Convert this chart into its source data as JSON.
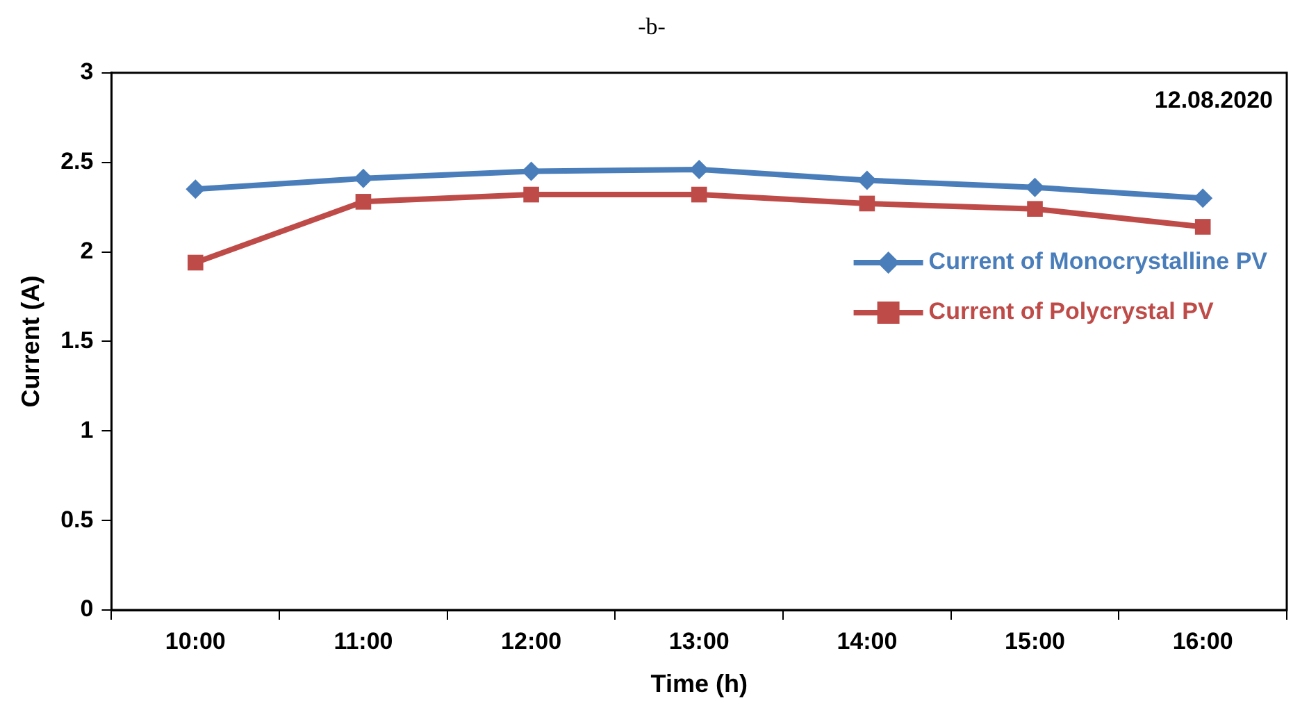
{
  "chart_data": {
    "type": "line",
    "title": "-b-",
    "xlabel": "Time (h)",
    "ylabel": "Current (A)",
    "categories": [
      "10:00",
      "11:00",
      "12:00",
      "13:00",
      "14:00",
      "15:00",
      "16:00"
    ],
    "series": [
      {
        "name": "Current of Monocrystalline PV",
        "color": "#4a7ebb",
        "marker": "diamond",
        "values": [
          2.35,
          2.41,
          2.45,
          2.46,
          2.4,
          2.36,
          2.3
        ]
      },
      {
        "name": "Current of Polycrystal PV",
        "color": "#be4b48",
        "marker": "square",
        "values": [
          1.94,
          2.28,
          2.32,
          2.32,
          2.27,
          2.24,
          2.14
        ]
      }
    ],
    "ylim": [
      0,
      3
    ],
    "yticks": [
      0,
      0.5,
      1,
      1.5,
      2,
      2.5,
      3
    ],
    "grid": false,
    "legend": "right",
    "annotations": [
      "12.08.2020"
    ]
  }
}
